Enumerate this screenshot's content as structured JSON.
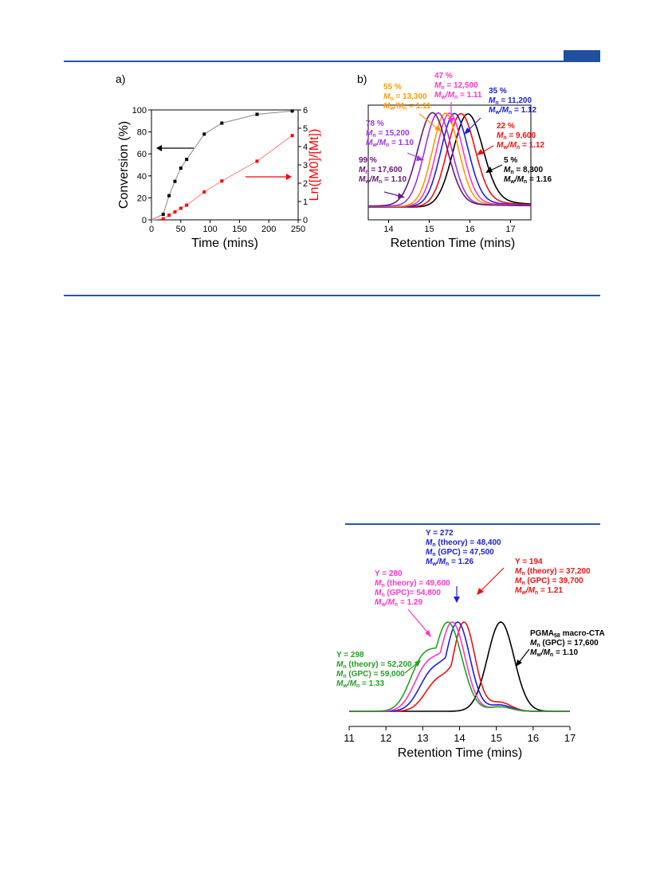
{
  "colors": {
    "accent": "#1f4f9e"
  },
  "charts": {
    "a": {
      "panel_label": "a)",
      "chart_data": {
        "type": "scatter",
        "xlabel": "Time (mins)",
        "ylabel_left": "Conversion (%)",
        "ylabel_right": "Ln([M0]/[Mt])",
        "xlim": [
          0,
          250
        ],
        "ylim_left": [
          0,
          100
        ],
        "ylim_right": [
          0,
          6
        ],
        "x_ticks": [
          "0",
          "50",
          "100",
          "150",
          "200",
          "250"
        ],
        "y_left_ticks": [
          "0",
          "20",
          "40",
          "60",
          "80",
          "100"
        ],
        "y_right_ticks": [
          "0",
          "1",
          "2",
          "3",
          "4",
          "5",
          "6"
        ],
        "series": [
          {
            "axis": "left",
            "color": "#000000",
            "x": [
              0,
              20,
              30,
              40,
              50,
              60,
              90,
              120,
              180,
              240
            ],
            "y": [
              0,
              5,
              22,
              35,
              47,
              55,
              78,
              88,
              96,
              99
            ]
          },
          {
            "axis": "right",
            "color": "#ff0000",
            "x": [
              0,
              20,
              30,
              40,
              50,
              60,
              90,
              120,
              180,
              240
            ],
            "y": [
              0,
              0.05,
              0.25,
              0.43,
              0.63,
              0.8,
              1.52,
              2.12,
              3.2,
              4.6
            ]
          }
        ]
      }
    },
    "b": {
      "panel_label": "b)",
      "chart_data": {
        "type": "line",
        "xlabel": "Retention Time (mins)",
        "xlim": [
          13.5,
          17.5
        ],
        "x_ticks": [
          "14",
          "15",
          "16",
          "17"
        ],
        "series": [
          {
            "color": "#000000",
            "peak": 15.95,
            "sigma": 0.36,
            "tail": 0.12,
            "base": 0.0
          },
          {
            "color": "#ee1111",
            "peak": 15.78,
            "sigma": 0.34,
            "tail": 0.1,
            "base": 0.01
          },
          {
            "color": "#1d21d6",
            "peak": 15.62,
            "sigma": 0.33,
            "tail": 0.08,
            "base": 0.02
          },
          {
            "color": "#ff33cc",
            "peak": 15.5,
            "sigma": 0.32,
            "tail": 0.06,
            "base": 0.03
          },
          {
            "color": "#ff9a00",
            "peak": 15.4,
            "sigma": 0.32,
            "tail": 0.05,
            "base": 0.03
          },
          {
            "color": "#a032e6",
            "peak": 15.22,
            "sigma": 0.33,
            "tail": 0.04,
            "base": 0.04
          },
          {
            "color": "#6a1878",
            "peak": 15.08,
            "sigma": 0.36,
            "tail": 0.03,
            "base": 0.05
          }
        ],
        "annotations": [
          {
            "color": "#6a1878",
            "pct": "99 %",
            "mn": "= 17,600",
            "pd": "= 1.10"
          },
          {
            "color": "#a032e6",
            "pct": "78 %",
            "mn": "= 15,200",
            "pd": "= 1.10"
          },
          {
            "color": "#ff9a00",
            "pct": "55 %",
            "mn": "= 13,300",
            "pd": "= 1.11"
          },
          {
            "color": "#ff33cc",
            "pct": "47 %",
            "mn": "= 12,500",
            "pd": "= 1.11"
          },
          {
            "color": "#1d21d6",
            "pct": "35 %",
            "mn": "= 11,200",
            "pd": "= 1.12"
          },
          {
            "color": "#ee1111",
            "pct": "22 %",
            "mn": "= 9,600",
            "pd": "= 1.12"
          },
          {
            "color": "#000000",
            "pct": "5 %",
            "mn": "= 8,300",
            "pd": "= 1.16"
          }
        ]
      }
    },
    "c": {
      "chart_data": {
        "type": "line",
        "xlabel": "Retention Time (mins)",
        "xlim": [
          11,
          17
        ],
        "x_ticks": [
          "11",
          "12",
          "13",
          "14",
          "15",
          "16",
          "17"
        ],
        "series": [
          {
            "color": "#000000",
            "peak": 15.12,
            "sigma": 0.36,
            "shoulder": 0.0,
            "tail": 0.0
          },
          {
            "color": "#ee1111",
            "peak": 14.12,
            "sigma": 0.3,
            "shoulder": 0.34,
            "tail": 0.1
          },
          {
            "color": "#1d21d6",
            "peak": 13.95,
            "sigma": 0.33,
            "shoulder": 0.42,
            "tail": 0.07
          },
          {
            "color": "#ff33cc",
            "peak": 13.8,
            "sigma": 0.35,
            "shoulder": 0.47,
            "tail": 0.05
          },
          {
            "color": "#22a022",
            "peak": 13.68,
            "sigma": 0.38,
            "shoulder": 0.52,
            "tail": 0.05
          }
        ],
        "annotations": {
          "y272": {
            "color": "#1d21d6",
            "y": "Y = 272",
            "mn_theory": "(theory) = 48,400",
            "mn_gpc": "(GPC) = 47,500",
            "pd": "= 1.26"
          },
          "y194": {
            "color": "#ee1111",
            "y": "Y = 194",
            "mn_theory": "(theory) = 37,200",
            "mn_gpc": "(GPC) = 39,700",
            "pd": "= 1.21"
          },
          "y280": {
            "color": "#ff33cc",
            "y": "Y = 280",
            "mn_theory": "(theory) = 49,600",
            "mn_gpc": "(GPC)= 54,800",
            "pd": "= 1.29"
          },
          "y298": {
            "color": "#22a022",
            "y": "Y = 298",
            "mn_theory": "(theory) = 52,200",
            "mn_gpc": "(GPC) = 59,000",
            "pd": "= 1.33"
          },
          "macro": {
            "color": "#000000",
            "name_prefix": "PGMA",
            "name_sub": "58",
            "name_suffix": " macro-CTA",
            "mn_gpc": "(GPC) = 17,600",
            "pd": "= 1.10"
          }
        }
      }
    }
  }
}
